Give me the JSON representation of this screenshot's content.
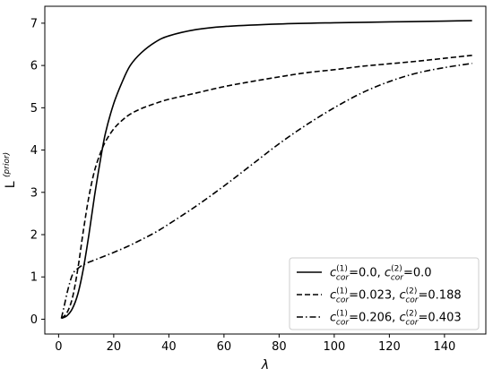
{
  "chart_data": {
    "type": "line",
    "title": "",
    "xlabel": "λ",
    "ylabel_main": "L",
    "ylabel_sup": "(prior)",
    "xlim": [
      -5,
      155
    ],
    "ylim": [
      -0.35,
      7.4
    ],
    "xticks": [
      0,
      20,
      40,
      60,
      80,
      100,
      120,
      140
    ],
    "yticks": [
      0,
      1,
      2,
      3,
      4,
      5,
      6,
      7
    ],
    "grid": false,
    "legend_position": "lower-right",
    "series": [
      {
        "dash": "solid",
        "legend": [
          {
            "sym": "c",
            "sup": "(1)",
            "sub": "cor",
            "val": "=0.0, "
          },
          {
            "sym": "c",
            "sup": "(2)",
            "sub": "cor",
            "val": "=0.0"
          }
        ],
        "points": [
          [
            1,
            0.02
          ],
          [
            3,
            0.08
          ],
          [
            5,
            0.25
          ],
          [
            7,
            0.6
          ],
          [
            9,
            1.2
          ],
          [
            11,
            2.0
          ],
          [
            13,
            2.9
          ],
          [
            15,
            3.7
          ],
          [
            17,
            4.4
          ],
          [
            20,
            5.1
          ],
          [
            23,
            5.6
          ],
          [
            26,
            6.0
          ],
          [
            30,
            6.3
          ],
          [
            35,
            6.55
          ],
          [
            40,
            6.7
          ],
          [
            50,
            6.85
          ],
          [
            60,
            6.92
          ],
          [
            80,
            6.98
          ],
          [
            100,
            7.01
          ],
          [
            120,
            7.03
          ],
          [
            140,
            7.05
          ],
          [
            150,
            7.06
          ]
        ]
      },
      {
        "dash": "dashed",
        "legend": [
          {
            "sym": "c",
            "sup": "(1)",
            "sub": "cor",
            "val": "=0.023, "
          },
          {
            "sym": "c",
            "sup": "(2)",
            "sub": "cor",
            "val": "=0.188"
          }
        ],
        "points": [
          [
            1,
            0.02
          ],
          [
            3,
            0.15
          ],
          [
            5,
            0.5
          ],
          [
            7,
            1.2
          ],
          [
            9,
            2.1
          ],
          [
            11,
            2.9
          ],
          [
            13,
            3.5
          ],
          [
            15,
            3.9
          ],
          [
            17,
            4.2
          ],
          [
            20,
            4.5
          ],
          [
            23,
            4.7
          ],
          [
            26,
            4.85
          ],
          [
            30,
            4.98
          ],
          [
            35,
            5.1
          ],
          [
            40,
            5.2
          ],
          [
            50,
            5.35
          ],
          [
            60,
            5.5
          ],
          [
            70,
            5.62
          ],
          [
            80,
            5.73
          ],
          [
            90,
            5.83
          ],
          [
            100,
            5.9
          ],
          [
            110,
            5.98
          ],
          [
            120,
            6.04
          ],
          [
            130,
            6.1
          ],
          [
            140,
            6.17
          ],
          [
            150,
            6.24
          ]
        ]
      },
      {
        "dash": "dashdot",
        "legend": [
          {
            "sym": "c",
            "sup": "(1)",
            "sub": "cor",
            "val": "=0.206, "
          },
          {
            "sym": "c",
            "sup": "(2)",
            "sub": "cor",
            "val": "=0.403"
          }
        ],
        "points": [
          [
            1,
            0.02
          ],
          [
            2,
            0.3
          ],
          [
            3,
            0.6
          ],
          [
            4,
            0.85
          ],
          [
            5,
            1.05
          ],
          [
            6,
            1.15
          ],
          [
            7,
            1.2
          ],
          [
            8,
            1.25
          ],
          [
            10,
            1.32
          ],
          [
            15,
            1.45
          ],
          [
            20,
            1.58
          ],
          [
            25,
            1.72
          ],
          [
            30,
            1.88
          ],
          [
            35,
            2.05
          ],
          [
            40,
            2.25
          ],
          [
            50,
            2.68
          ],
          [
            60,
            3.15
          ],
          [
            70,
            3.65
          ],
          [
            80,
            4.15
          ],
          [
            90,
            4.6
          ],
          [
            100,
            5.0
          ],
          [
            110,
            5.35
          ],
          [
            120,
            5.62
          ],
          [
            130,
            5.82
          ],
          [
            140,
            5.95
          ],
          [
            150,
            6.05
          ]
        ]
      }
    ]
  }
}
